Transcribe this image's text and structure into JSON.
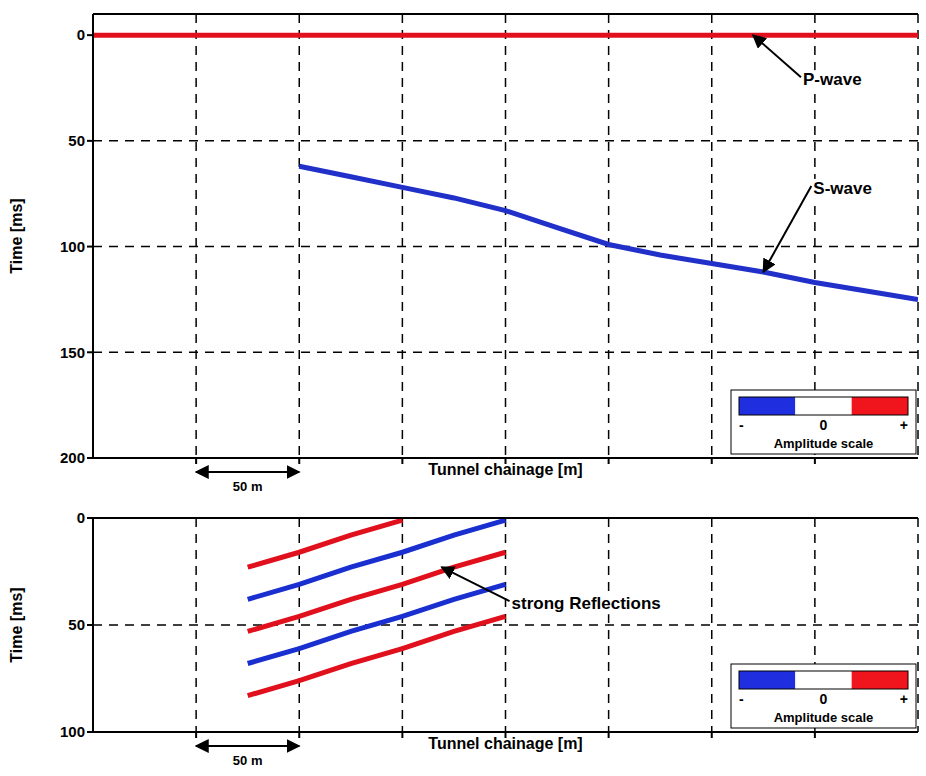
{
  "chart_data": [
    {
      "type": "line",
      "x_label": "Tunnel chainage [m]",
      "y_label": "Time [ms]",
      "x": [
        0,
        25,
        50,
        75,
        100,
        125,
        150,
        175,
        200,
        225,
        250,
        275,
        300,
        325,
        350,
        375,
        400
      ],
      "xlim": [
        0,
        400
      ],
      "xticks": [
        50,
        100,
        150,
        200,
        250,
        300,
        350
      ],
      "ylim": [
        -10,
        200
      ],
      "yticks": [
        0,
        50,
        100,
        150,
        200
      ],
      "grid": true,
      "tick_labels": "y",
      "series": [
        {
          "color": "#e0101c",
          "values": [
            0,
            0,
            0,
            0,
            0,
            0,
            0,
            0,
            0,
            0,
            0,
            0,
            0,
            0,
            0,
            0,
            0
          ]
        },
        {
          "color": "#2030c8",
          "values": [
            null,
            null,
            null,
            null,
            62,
            67,
            72,
            77,
            83,
            91,
            99,
            104,
            108,
            112,
            117,
            121,
            125
          ]
        }
      ],
      "annotations": [
        {
          "text": "P-wave",
          "x": 320,
          "y": 0
        },
        {
          "text": "S-wave",
          "x": 325,
          "y": 112
        }
      ],
      "scale_bar": {
        "x": [
          50,
          100
        ],
        "label": "50 m"
      },
      "colorbar": {
        "colors": [
          "#1f2fe0",
          "#ffffff",
          "#f0141c"
        ],
        "range": [
          -1,
          1
        ],
        "ticks": [
          {
            "value": -1,
            "label": "-"
          },
          0,
          {
            "value": 1,
            "label": "+"
          }
        ],
        "label": "Amplitude scale"
      }
    },
    {
      "type": "line",
      "x_label": "Tunnel chainage [m]",
      "y_label": "Time [ms]",
      "x": [
        0,
        25,
        50,
        75,
        100,
        125,
        150,
        175,
        200,
        225,
        250,
        275,
        300,
        325,
        350,
        375,
        400
      ],
      "xlim": [
        0,
        400
      ],
      "xticks": [
        50,
        100,
        150,
        200,
        250,
        300,
        350
      ],
      "ylim": [
        0,
        100
      ],
      "yticks": [
        0,
        50,
        100
      ],
      "grid": true,
      "tick_labels": "y",
      "series": [
        {
          "color": "#e0101c",
          "values": [
            null,
            null,
            null,
            23,
            16,
            8,
            1,
            null,
            null,
            null,
            null,
            null,
            null,
            null,
            null,
            null,
            null
          ]
        },
        {
          "color": "#1a2fd0",
          "values": [
            null,
            null,
            null,
            38,
            31,
            23,
            16,
            8,
            1,
            null,
            null,
            null,
            null,
            null,
            null,
            null,
            null
          ]
        },
        {
          "color": "#e0101c",
          "values": [
            null,
            null,
            null,
            53,
            46,
            38,
            31,
            23,
            16,
            null,
            null,
            null,
            null,
            null,
            null,
            null,
            null
          ]
        },
        {
          "color": "#1a2fd0",
          "values": [
            null,
            null,
            null,
            68,
            61,
            53,
            46,
            38,
            31,
            null,
            null,
            null,
            null,
            null,
            null,
            null,
            null
          ]
        },
        {
          "color": "#e0101c",
          "values": [
            null,
            null,
            null,
            83,
            76,
            68,
            61,
            53,
            46,
            null,
            null,
            null,
            null,
            null,
            null,
            null,
            null
          ]
        }
      ],
      "annotations": [
        {
          "text": "strong Reflections",
          "x": 169,
          "y": 23
        }
      ],
      "scale_bar": {
        "x": [
          50,
          100
        ],
        "label": "50 m"
      },
      "colorbar": {
        "colors": [
          "#1f2fe0",
          "#ffffff",
          "#f0141c"
        ],
        "range": [
          -1,
          1
        ],
        "ticks": [
          {
            "value": -1,
            "label": "-"
          },
          0,
          {
            "value": 1,
            "label": "+"
          }
        ],
        "label": "Amplitude scale"
      }
    }
  ]
}
